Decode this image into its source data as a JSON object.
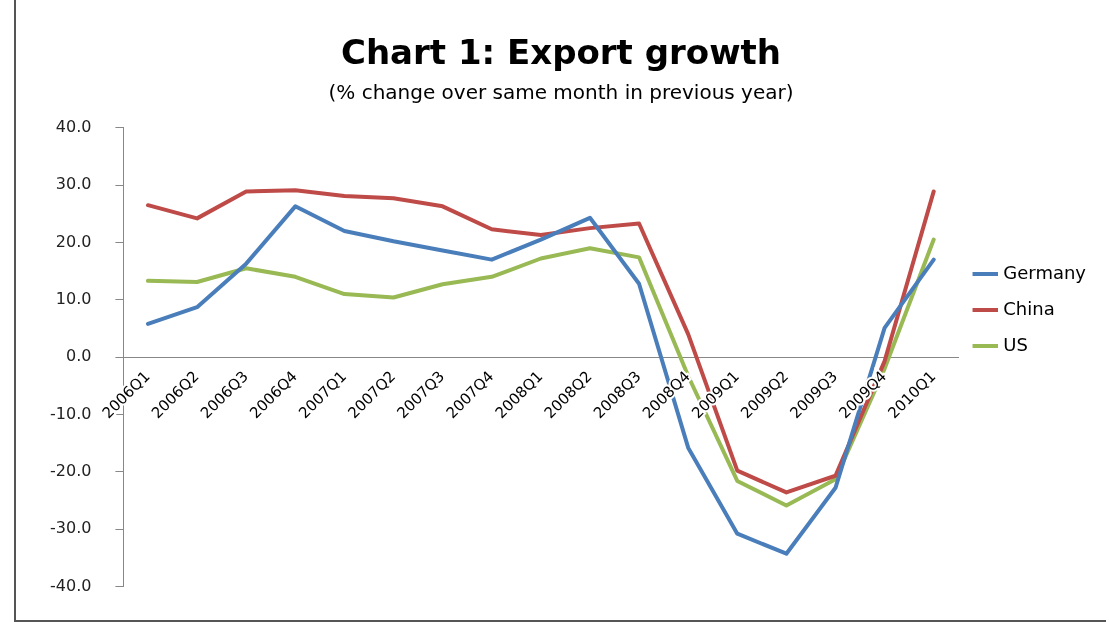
{
  "chart_data": {
    "type": "line",
    "title": "Chart 1: Export growth",
    "subtitle": "(% change over same month in previous year)",
    "categories": [
      "2006Q1",
      "2006Q2",
      "2006Q3",
      "2006Q4",
      "2007Q1",
      "2007Q2",
      "2007Q3",
      "2007Q4",
      "2008Q1",
      "2008Q2",
      "2008Q3",
      "2008Q4",
      "2009Q1",
      "2009Q2",
      "2009Q3",
      "2009Q4",
      "2010Q1"
    ],
    "series": [
      {
        "name": "Germany",
        "color": "#4a7ebb",
        "values": [
          5.8,
          8.7,
          16.3,
          26.3,
          22.0,
          20.2,
          18.6,
          17.0,
          20.5,
          24.3,
          12.8,
          -15.8,
          -30.8,
          -34.3,
          -22.8,
          5.1,
          17.0
        ]
      },
      {
        "name": "China",
        "color": "#be4b48",
        "values": [
          26.5,
          24.2,
          28.9,
          29.1,
          28.1,
          27.7,
          26.3,
          22.3,
          21.3,
          22.5,
          23.3,
          4.0,
          -19.8,
          -23.6,
          -20.7,
          -0.7,
          28.9
        ]
      },
      {
        "name": "US",
        "color": "#98b954",
        "values": [
          13.3,
          13.1,
          15.5,
          14.0,
          11.0,
          10.4,
          12.7,
          14.0,
          17.2,
          19.0,
          17.4,
          -3.3,
          -21.6,
          -25.9,
          -21.3,
          -2.0,
          20.5
        ]
      }
    ],
    "ylim": [
      -40,
      40
    ],
    "yticks": [
      {
        "value": -40,
        "label": "-40.0"
      },
      {
        "value": -30,
        "label": "-30.0"
      },
      {
        "value": -20,
        "label": "-20.0"
      },
      {
        "value": -10,
        "label": "-10.0"
      },
      {
        "value": 0,
        "label": "0.0"
      },
      {
        "value": 10,
        "label": "10.0"
      },
      {
        "value": 20,
        "label": "20.0"
      },
      {
        "value": 30,
        "label": "30.0"
      },
      {
        "value": 40,
        "label": "40.0"
      }
    ],
    "grid": false,
    "legend": "right",
    "marker": "none",
    "line_style": "solid"
  }
}
